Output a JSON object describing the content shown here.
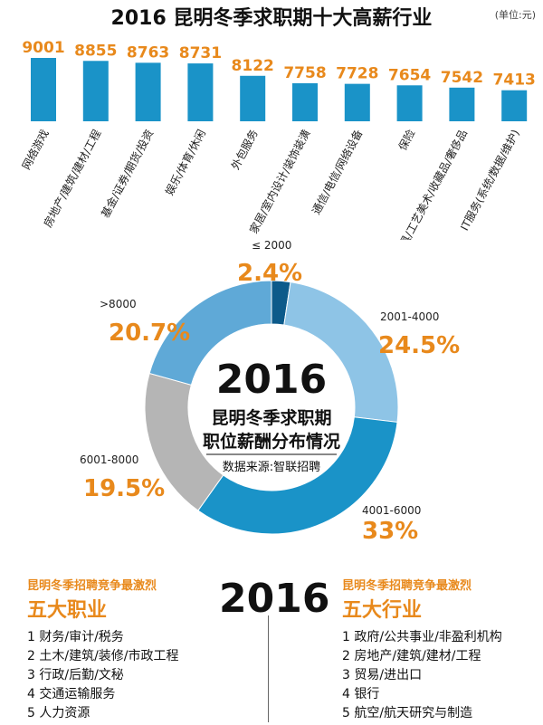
{
  "header": {
    "title": "2016 昆明冬季求职期十大高薪行业",
    "unit": "(单位:元)"
  },
  "chart_data": [
    {
      "type": "bar",
      "title": "2016 昆明冬季求职期十大高薪行业",
      "unit": "(单位:元)",
      "categories": [
        "网络游戏",
        "房地产/建筑/建材/工程",
        "基金/证券/期货/投资",
        "娱乐/体育/休闲",
        "外包服务",
        "家居/室内设计/装饰装潢",
        "通信/电信/网络设备",
        "保险",
        "礼品/玩具/工艺美术/收藏品/奢侈品",
        "IT服务(系统/数据/维护)"
      ],
      "values": [
        9001,
        8855,
        8763,
        8731,
        8122,
        7758,
        7728,
        7654,
        7542,
        7413
      ],
      "colors": {
        "bar": "#1a93c8",
        "value_label": "#e8891c"
      }
    },
    {
      "type": "pie",
      "title": "2016 昆明冬季求职期 职位薪酬分布情况",
      "source": "数据来源:智联招聘",
      "slices": [
        {
          "label": "≤ 2000",
          "value": 2.4,
          "value_label": "2.4%",
          "color": "#0c5a8a"
        },
        {
          "label": "2001-4000",
          "value": 24.5,
          "value_label": "24.5%",
          "color": "#8ec4e6"
        },
        {
          "label": "4001-6000",
          "value": 33,
          "value_label": "33%",
          "color": "#1a93c8"
        },
        {
          "label": "6001-8000",
          "value": 19.5,
          "value_label": "19.5%",
          "color": "#b5b5b5"
        },
        {
          "label": ">8000",
          "value": 20.7,
          "value_label": "20.7%",
          "color": "#5fa9d7"
        }
      ],
      "center": {
        "year": "2016",
        "line1": "昆明冬季求职期",
        "line2": "职位薪酬分布情况",
        "source": "数据来源:智联招聘"
      }
    }
  ],
  "bottom": {
    "year": "2016",
    "left": {
      "tag": "昆明冬季招聘竞争最激烈",
      "title": "五大职业",
      "items": [
        "1 财务/审计/税务",
        "2 土木/建筑/装修/市政工程",
        "3 行政/后勤/文秘",
        "4 交通运输服务",
        "5 人力资源"
      ]
    },
    "right": {
      "tag": "昆明冬季招聘竞争最激烈",
      "title": "五大行业",
      "items": [
        "1 政府/公共事业/非盈利机构",
        "2 房地产/建筑/建材/工程",
        "3 贸易/进出口",
        "4 银行",
        "5 航空/航天研究与制造"
      ]
    }
  }
}
